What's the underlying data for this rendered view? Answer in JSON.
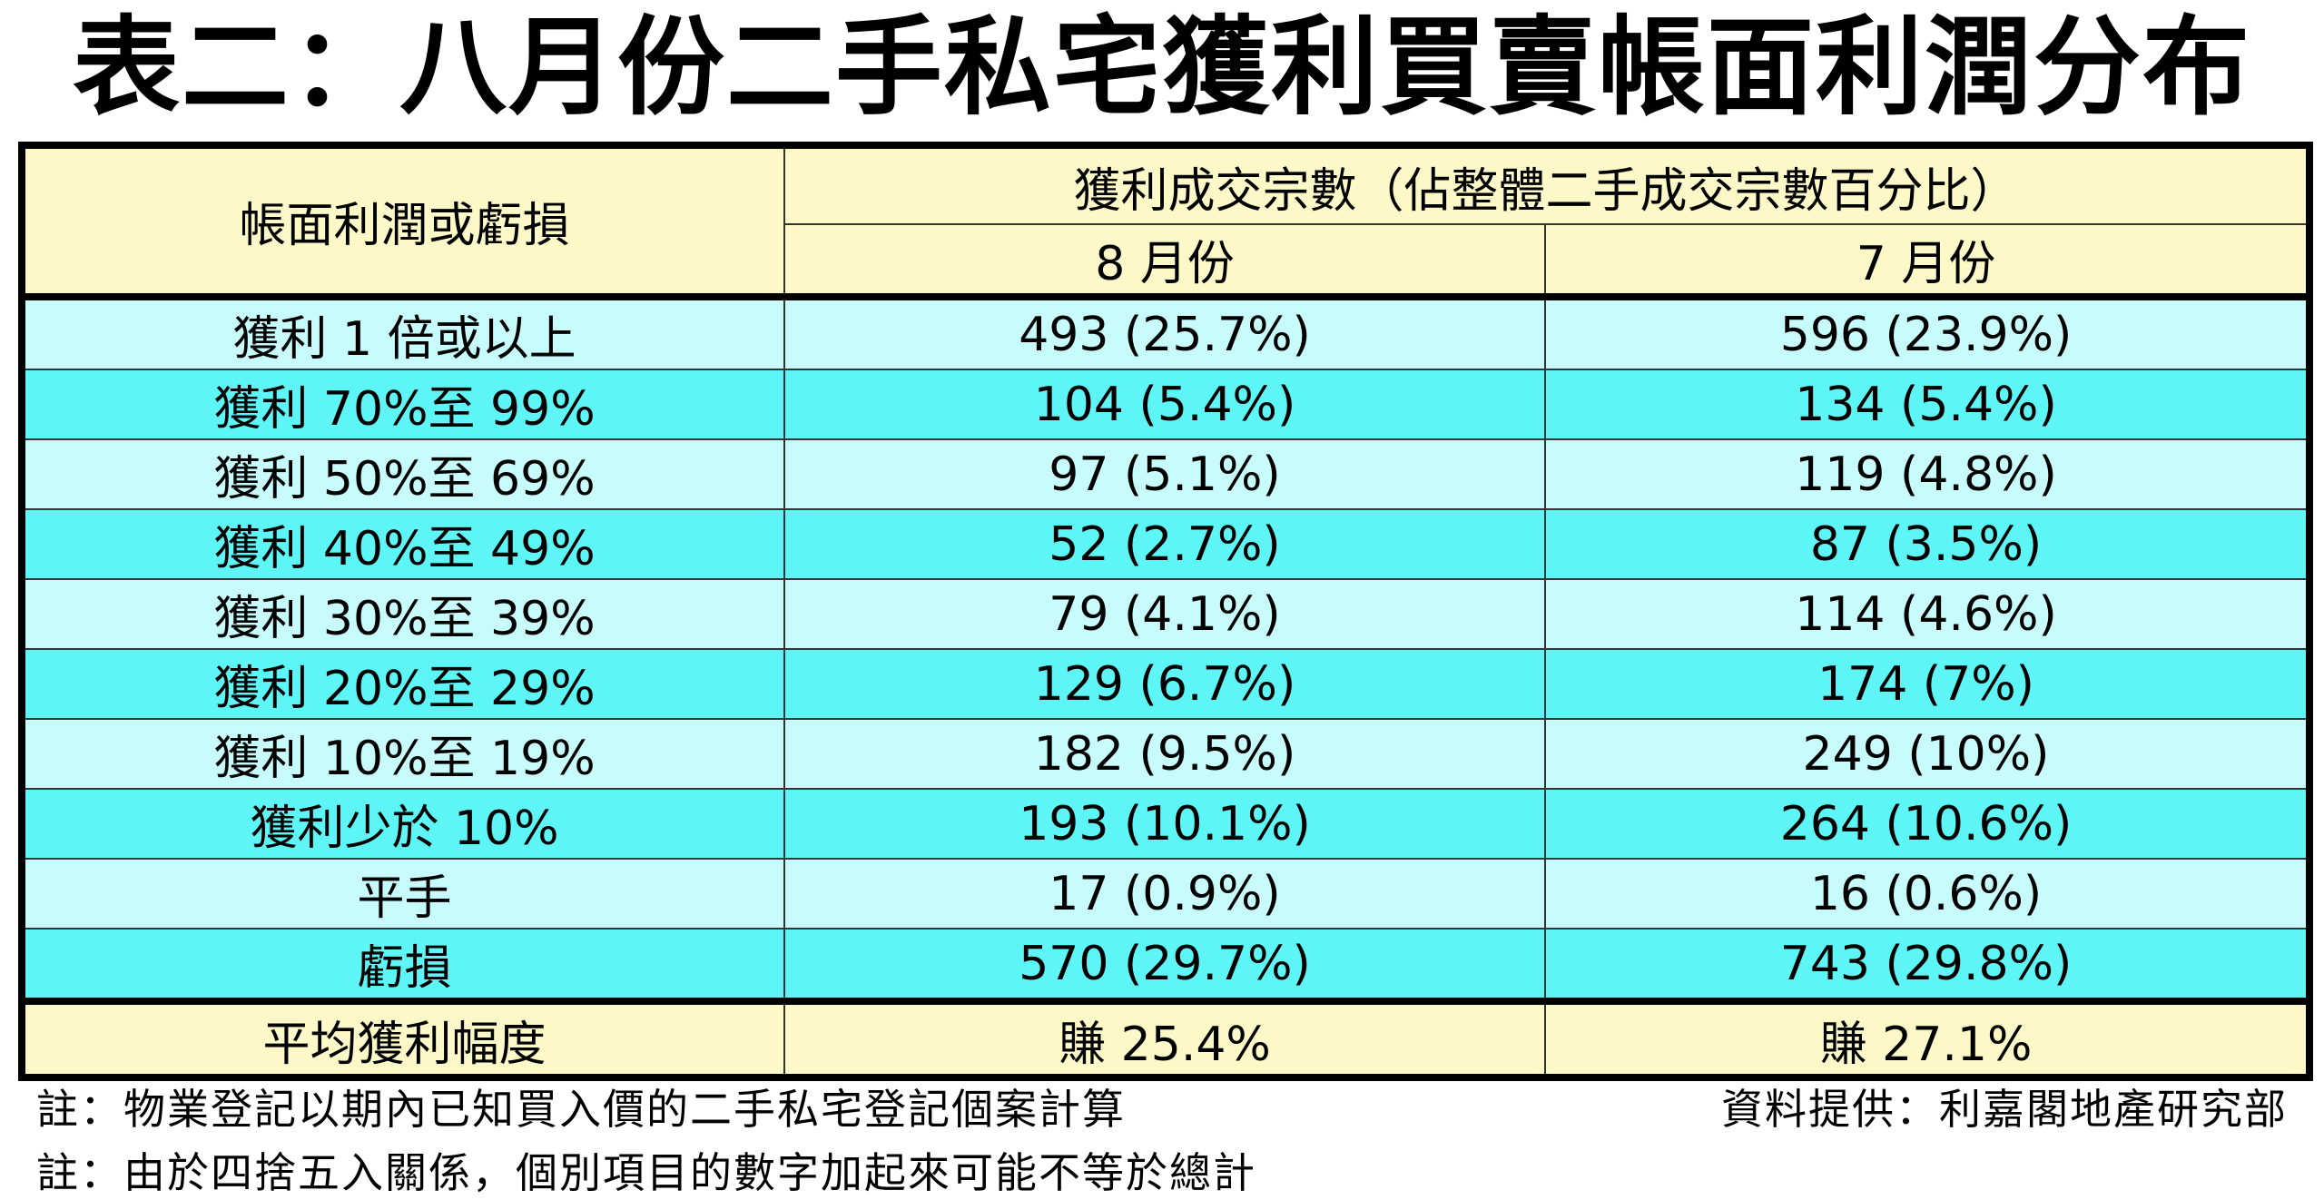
{
  "title": "表二：八月份二手私宅獲利買賣帳面利潤分布",
  "table": {
    "header": {
      "row_label": "帳面利潤或虧損",
      "group": "獲利成交宗數（佔整體二手成交宗數百分比）",
      "columns": [
        "8 月份",
        "7 月份"
      ]
    },
    "rows": [
      [
        "獲利 1 倍或以上",
        "493 (25.7%)",
        "596 (23.9%)"
      ],
      [
        "獲利 70%至 99%",
        "104 (5.4%)",
        "134 (5.4%)"
      ],
      [
        "獲利 50%至 69%",
        "97 (5.1%)",
        "119 (4.8%)"
      ],
      [
        "獲利 40%至 49%",
        "52 (2.7%)",
        "87 (3.5%)"
      ],
      [
        "獲利 30%至 39%",
        "79 (4.1%)",
        "114 (4.6%)"
      ],
      [
        "獲利 20%至 29%",
        "129 (6.7%)",
        "174 (7%)"
      ],
      [
        "獲利 10%至 19%",
        "182 (9.5%)",
        "249 (10%)"
      ],
      [
        "獲利少於 10%",
        "193 (10.1%)",
        "264 (10.6%)"
      ],
      [
        "平手",
        "17 (0.9%)",
        "16 (0.6%)"
      ],
      [
        "虧損",
        "570 (29.7%)",
        "743 (29.8%)"
      ]
    ],
    "footer": [
      "平均獲利幅度",
      "賺 25.4%",
      "賺 27.1%"
    ]
  },
  "notes": [
    "註：物業登記以期內已知買入價的二手私宅登記個案計算",
    "註：由於四捨五入關係，個別項目的數字加起來可能不等於總計"
  ],
  "source": "資料提供：利嘉閣地產研究部"
}
